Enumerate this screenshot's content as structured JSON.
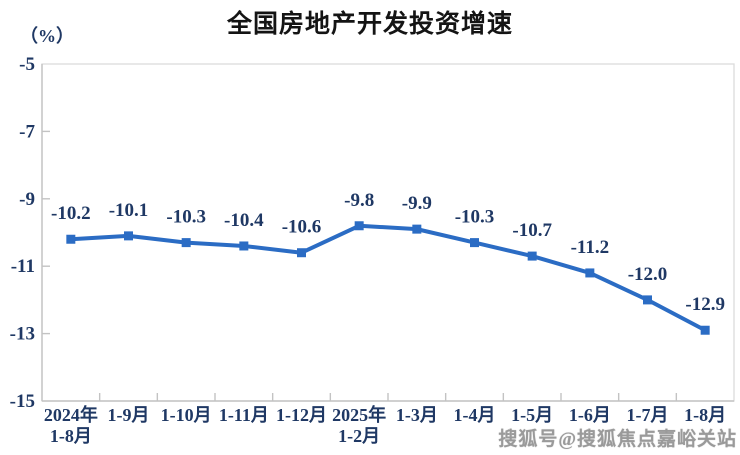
{
  "page": {
    "title": "全国房地产开发投资增速",
    "unit_label": "（%）",
    "watermark": "搜狐号@搜狐焦点嘉峪关站"
  },
  "chart_data": {
    "type": "line",
    "title": "全国房地产开发投资增速",
    "ylabel": "（%）",
    "xlabel": "",
    "grid": false,
    "legend_position": "none",
    "series_name": "全国房地产开发投资增速",
    "categories": [
      "2024年\n1-8月",
      "1-9月",
      "1-10月",
      "1-11月",
      "1-12月",
      "2025年\n1-2月",
      "1-3月",
      "1-4月",
      "1-5月",
      "1-6月",
      "1-7月",
      "1-8月"
    ],
    "values": [
      -10.2,
      -10.1,
      -10.3,
      -10.4,
      -10.6,
      -9.8,
      -9.9,
      -10.3,
      -10.7,
      -11.2,
      -12.0,
      -12.9
    ],
    "point_labels": [
      "-10.2",
      "-10.1",
      "-10.3",
      "-10.4",
      "-10.6",
      "-9.8",
      "-9.9",
      "-10.3",
      "-10.7",
      "-11.2",
      "-12.0",
      "-12.9"
    ],
    "ylim": [
      -15,
      -5
    ],
    "yticks": [
      -5,
      -7,
      -9,
      -11,
      -13,
      -15
    ],
    "colors": {
      "line": "#2B6CC4",
      "marker": "#2B6CC4",
      "label_text": "#1F3864",
      "axis_text": "#1F3864",
      "axis_line": "#c3c3c3",
      "plot_border": "#dcdcdc"
    }
  }
}
